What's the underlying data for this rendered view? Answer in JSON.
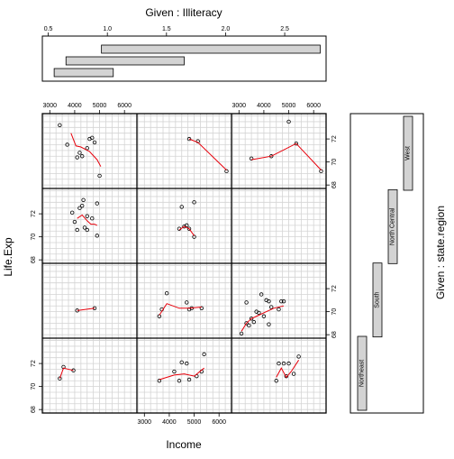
{
  "chart_data": {
    "type": "scatter",
    "title": "",
    "xlabel": "Income",
    "ylabel": "Life.Exp",
    "xlim": [
      2700,
      6500
    ],
    "ylim": [
      67.7,
      74.2
    ],
    "xticks": [
      3000,
      4000,
      5000,
      6000
    ],
    "yticks": [
      68,
      70,
      72
    ],
    "grid": true,
    "smoother_color": "#e8000b",
    "point_color": "#000000",
    "given_illiteracy": {
      "label": "Given : Illiteracy",
      "ticks": [
        0.5,
        1.0,
        1.5,
        2.0,
        2.5
      ],
      "tick_labels": [
        "0.5",
        "1.0",
        "1.5",
        "2.0",
        "2.5"
      ],
      "xlim": [
        0.45,
        2.85
      ],
      "intervals": [
        [
          0.55,
          1.05
        ],
        [
          0.65,
          1.65
        ],
        [
          0.95,
          2.8
        ]
      ]
    },
    "given_region": {
      "label": "Given : state.region",
      "levels": [
        "Northeast",
        "South",
        "North Central",
        "West"
      ]
    },
    "panels": [
      {
        "col": 0,
        "row": 3,
        "points": [
          [
            3400,
            73.2
          ],
          [
            3700,
            71.5
          ],
          [
            4200,
            70.8
          ],
          [
            4100,
            70.4
          ],
          [
            4300,
            70.5
          ],
          [
            4500,
            71.2
          ],
          [
            4600,
            72.0
          ],
          [
            4700,
            72.1
          ],
          [
            4800,
            71.7
          ],
          [
            5000,
            68.8
          ]
        ],
        "smooth": [
          [
            3850,
            72.5
          ],
          [
            4050,
            71.4
          ],
          [
            4250,
            71.3
          ],
          [
            4600,
            70.9
          ],
          [
            4900,
            70.2
          ],
          [
            5050,
            69.6
          ]
        ]
      },
      {
        "col": 1,
        "row": 3,
        "points": [
          [
            4800,
            72.0
          ],
          [
            5150,
            71.8
          ],
          [
            6300,
            69.2
          ]
        ],
        "smooth": [
          [
            4800,
            72.0
          ],
          [
            5150,
            71.7
          ],
          [
            6300,
            69.3
          ]
        ]
      },
      {
        "col": 2,
        "row": 3,
        "points": [
          [
            3500,
            70.3
          ],
          [
            4300,
            70.5
          ],
          [
            5000,
            73.5
          ],
          [
            5300,
            71.6
          ],
          [
            6300,
            69.2
          ]
        ],
        "smooth": [
          [
            3500,
            70.2
          ],
          [
            4300,
            70.5
          ],
          [
            5300,
            71.6
          ],
          [
            6300,
            69.3
          ]
        ]
      },
      {
        "col": 0,
        "row": 2,
        "points": [
          [
            3900,
            72.1
          ],
          [
            4000,
            71.3
          ],
          [
            4100,
            70.6
          ],
          [
            4200,
            72.5
          ],
          [
            4300,
            72.7
          ],
          [
            4350,
            73.2
          ],
          [
            4500,
            71.8
          ],
          [
            4400,
            70.8
          ],
          [
            4500,
            70.6
          ],
          [
            4700,
            71.6
          ],
          [
            4900,
            72.9
          ],
          [
            4900,
            70.1
          ]
        ],
        "smooth": [
          [
            4100,
            71.6
          ],
          [
            4300,
            71.9
          ],
          [
            4500,
            71.4
          ],
          [
            4650,
            71.1
          ],
          [
            4800,
            71.1
          ],
          [
            4900,
            71.0
          ]
        ]
      },
      {
        "col": 1,
        "row": 2,
        "points": [
          [
            4400,
            70.7
          ],
          [
            4500,
            72.6
          ],
          [
            4600,
            70.9
          ],
          [
            4700,
            71.0
          ],
          [
            4800,
            70.7
          ],
          [
            5000,
            73.0
          ],
          [
            5000,
            70.0
          ]
        ],
        "smooth": [
          [
            4400,
            70.6
          ],
          [
            4600,
            70.9
          ],
          [
            4800,
            70.7
          ],
          [
            5000,
            70.1
          ]
        ]
      },
      {
        "col": 0,
        "row": 1,
        "points": [
          [
            4100,
            70.1
          ],
          [
            4800,
            70.3
          ]
        ],
        "smooth": [
          [
            4100,
            70.1
          ],
          [
            4800,
            70.3
          ]
        ]
      },
      {
        "col": 1,
        "row": 1,
        "points": [
          [
            3600,
            69.6
          ],
          [
            3700,
            70.2
          ],
          [
            3900,
            71.6
          ],
          [
            4700,
            70.8
          ],
          [
            4800,
            70.2
          ],
          [
            4900,
            70.3
          ],
          [
            5300,
            70.3
          ]
        ],
        "smooth": [
          [
            3600,
            69.7
          ],
          [
            3900,
            70.7
          ],
          [
            4400,
            70.3
          ],
          [
            4800,
            70.3
          ],
          [
            5300,
            70.4
          ]
        ]
      },
      {
        "col": 2,
        "row": 1,
        "points": [
          [
            3100,
            68.1
          ],
          [
            3300,
            70.8
          ],
          [
            3300,
            69.0
          ],
          [
            3400,
            68.8
          ],
          [
            3500,
            69.4
          ],
          [
            3600,
            69.1
          ],
          [
            3700,
            70.0
          ],
          [
            3800,
            69.9
          ],
          [
            3900,
            71.5
          ],
          [
            4000,
            69.6
          ],
          [
            4100,
            71.0
          ],
          [
            4200,
            70.9
          ],
          [
            4200,
            68.9
          ],
          [
            4300,
            70.4
          ],
          [
            4600,
            70.2
          ],
          [
            4700,
            70.9
          ],
          [
            4800,
            70.9
          ]
        ],
        "smooth": [
          [
            3100,
            68.3
          ],
          [
            3300,
            69.0
          ],
          [
            3500,
            69.4
          ],
          [
            3800,
            69.7
          ],
          [
            4100,
            70.0
          ],
          [
            4400,
            70.3
          ],
          [
            4800,
            70.5
          ]
        ]
      },
      {
        "col": 0,
        "row": 0,
        "points": [
          [
            3400,
            70.7
          ],
          [
            3550,
            71.7
          ],
          [
            3950,
            71.4
          ]
        ],
        "smooth": [
          [
            3400,
            70.7
          ],
          [
            3550,
            71.6
          ],
          [
            3950,
            71.4
          ]
        ]
      },
      {
        "col": 1,
        "row": 0,
        "points": [
          [
            3600,
            70.5
          ],
          [
            4200,
            71.3
          ],
          [
            4400,
            70.5
          ],
          [
            4500,
            72.1
          ],
          [
            4700,
            72.0
          ],
          [
            4800,
            70.6
          ],
          [
            5100,
            70.9
          ],
          [
            5300,
            71.3
          ],
          [
            5400,
            72.8
          ]
        ],
        "smooth": [
          [
            3600,
            70.6
          ],
          [
            4200,
            71.0
          ],
          [
            4600,
            71.1
          ],
          [
            5000,
            70.9
          ],
          [
            5400,
            71.6
          ]
        ]
      },
      {
        "col": 2,
        "row": 0,
        "points": [
          [
            4500,
            70.5
          ],
          [
            4600,
            72.0
          ],
          [
            4800,
            72.0
          ],
          [
            4900,
            70.9
          ],
          [
            5000,
            72.0
          ],
          [
            5200,
            71.1
          ],
          [
            5400,
            72.6
          ]
        ],
        "smooth": [
          [
            4500,
            70.8
          ],
          [
            4700,
            71.6
          ],
          [
            4900,
            70.8
          ],
          [
            5100,
            71.3
          ],
          [
            5400,
            72.3
          ]
        ]
      }
    ]
  }
}
